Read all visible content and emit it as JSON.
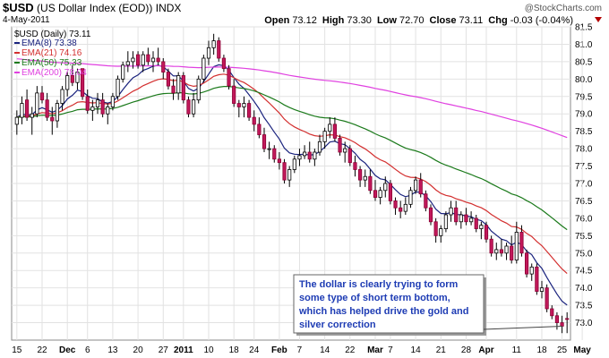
{
  "header": {
    "symbol": "$USD",
    "name": "(US Dollar Index (EOD))",
    "exchange": "INDX",
    "date": "4-May-2011",
    "brand": "@StockCharts.com",
    "open_label": "Open",
    "open": "73.12",
    "high_label": "High",
    "high": "73.30",
    "low_label": "Low",
    "low": "72.70",
    "close_label": "Close",
    "close": "73.11",
    "chg_label": "Chg",
    "chg": "-0.03 (-0.04%)"
  },
  "legend": {
    "main": "$USD (Daily) 73.11",
    "items": [
      {
        "label": "EMA(8) 73.38",
        "color": "#1a237e"
      },
      {
        "label": "EMA(21) 74.16",
        "color": "#d32f2f"
      },
      {
        "label": "EMA(50) 75.33",
        "color": "#1b7a1b"
      },
      {
        "label": "EMA(200) 78.04",
        "color": "#e040e0"
      }
    ]
  },
  "annotation": {
    "lines": [
      "The dollar is clearly trying to form",
      "some type of short term bottom,",
      "which has helped drive the gold and",
      "silver correction"
    ]
  },
  "chart_data": {
    "type": "candlestick",
    "title": "$USD (US Dollar Index (EOD)) INDX",
    "ylim": [
      72.5,
      81.5
    ],
    "yticks": [
      73.0,
      73.5,
      74.0,
      74.5,
      75.0,
      75.5,
      76.0,
      76.5,
      77.0,
      77.5,
      78.0,
      78.5,
      79.0,
      79.5,
      80.0,
      80.5,
      81.0,
      81.5
    ],
    "ytick_labels": [
      "73.0",
      "73.5",
      "74.0",
      "74.5",
      "75.0",
      "75.5",
      "76.0",
      "76.5",
      "77.0",
      "77.5",
      "78.0",
      "78.5",
      "79.0",
      "79.5",
      "80.0",
      "80.5",
      "81.0",
      "81.5"
    ],
    "xticks": [
      {
        "label": "15",
        "index": 0,
        "bold": false
      },
      {
        "label": "22",
        "index": 5,
        "bold": false
      },
      {
        "label": "Dec",
        "index": 10,
        "bold": true
      },
      {
        "label": "6",
        "index": 14,
        "bold": false
      },
      {
        "label": "13",
        "index": 19,
        "bold": false
      },
      {
        "label": "20",
        "index": 24,
        "bold": false
      },
      {
        "label": "27",
        "index": 29,
        "bold": false
      },
      {
        "label": "2011",
        "index": 33,
        "bold": true
      },
      {
        "label": "10",
        "index": 38,
        "bold": false
      },
      {
        "label": "18",
        "index": 43,
        "bold": false
      },
      {
        "label": "24",
        "index": 47,
        "bold": false
      },
      {
        "label": "Feb",
        "index": 52,
        "bold": true
      },
      {
        "label": "7",
        "index": 56,
        "bold": false
      },
      {
        "label": "14",
        "index": 61,
        "bold": false
      },
      {
        "label": "22",
        "index": 66,
        "bold": false
      },
      {
        "label": "Mar",
        "index": 71,
        "bold": true
      },
      {
        "label": "7",
        "index": 74,
        "bold": false
      },
      {
        "label": "14",
        "index": 79,
        "bold": false
      },
      {
        "label": "21",
        "index": 84,
        "bold": false
      },
      {
        "label": "28",
        "index": 89,
        "bold": false
      },
      {
        "label": "Apr",
        "index": 93,
        "bold": true
      },
      {
        "label": "11",
        "index": 99,
        "bold": false
      },
      {
        "label": "18",
        "index": 104,
        "bold": false
      },
      {
        "label": "25",
        "index": 108,
        "bold": false
      },
      {
        "label": "May",
        "index": 112,
        "bold": true
      }
    ],
    "candles": [
      [
        78.7,
        79.1,
        78.4,
        78.9
      ],
      [
        78.9,
        79.5,
        78.7,
        79.3
      ],
      [
        79.4,
        79.7,
        78.8,
        78.9
      ],
      [
        78.9,
        79.2,
        78.4,
        79.0
      ],
      [
        79.0,
        79.8,
        78.9,
        79.6
      ],
      [
        79.6,
        79.8,
        79.3,
        79.4
      ],
      [
        79.4,
        79.6,
        78.8,
        78.9
      ],
      [
        78.9,
        79.2,
        78.4,
        78.8
      ],
      [
        78.8,
        79.4,
        78.6,
        79.3
      ],
      [
        79.3,
        79.8,
        79.1,
        79.7
      ],
      [
        79.7,
        80.2,
        79.5,
        80.1
      ],
      [
        80.1,
        80.4,
        79.8,
        79.9
      ],
      [
        79.9,
        80.3,
        79.7,
        80.2
      ],
      [
        80.3,
        80.3,
        79.4,
        79.5
      ],
      [
        79.5,
        79.7,
        79.0,
        79.1
      ],
      [
        79.1,
        79.4,
        78.8,
        79.2
      ],
      [
        79.2,
        79.6,
        79.0,
        79.4
      ],
      [
        79.4,
        79.6,
        78.9,
        79.0
      ],
      [
        79.0,
        79.3,
        78.7,
        79.2
      ],
      [
        79.2,
        79.6,
        79.1,
        79.5
      ],
      [
        79.5,
        80.1,
        79.4,
        80.0
      ],
      [
        80.0,
        80.5,
        79.9,
        80.4
      ],
      [
        80.4,
        80.8,
        80.2,
        80.5
      ],
      [
        80.5,
        80.8,
        80.3,
        80.6
      ],
      [
        80.7,
        80.8,
        80.3,
        80.4
      ],
      [
        80.4,
        80.8,
        80.2,
        80.7
      ],
      [
        80.7,
        80.9,
        80.4,
        80.5
      ],
      [
        80.5,
        80.8,
        80.2,
        80.6
      ],
      [
        80.6,
        80.9,
        80.4,
        80.5
      ],
      [
        80.5,
        80.6,
        80.0,
        80.2
      ],
      [
        80.2,
        80.3,
        79.7,
        79.8
      ],
      [
        79.8,
        80.0,
        79.4,
        79.6
      ],
      [
        79.6,
        80.2,
        79.4,
        80.1
      ],
      [
        80.1,
        80.2,
        79.3,
        79.4
      ],
      [
        79.4,
        79.5,
        78.9,
        79.0
      ],
      [
        79.0,
        79.6,
        78.9,
        79.4
      ],
      [
        79.4,
        80.1,
        79.3,
        80.0
      ],
      [
        80.0,
        80.7,
        79.9,
        80.6
      ],
      [
        80.6,
        81.1,
        80.4,
        80.9
      ],
      [
        80.9,
        81.3,
        80.7,
        81.1
      ],
      [
        81.1,
        81.2,
        80.5,
        80.6
      ],
      [
        80.6,
        80.7,
        80.2,
        80.3
      ],
      [
        80.3,
        80.4,
        79.7,
        79.8
      ],
      [
        79.8,
        80.0,
        79.2,
        79.3
      ],
      [
        79.3,
        79.4,
        78.9,
        79.2
      ],
      [
        79.2,
        79.5,
        78.9,
        79.3
      ],
      [
        79.3,
        79.4,
        78.8,
        78.9
      ],
      [
        78.9,
        79.1,
        78.5,
        78.7
      ],
      [
        78.7,
        78.9,
        78.3,
        78.4
      ],
      [
        78.4,
        78.6,
        77.9,
        78.0
      ],
      [
        78.0,
        78.2,
        77.7,
        78.0
      ],
      [
        78.0,
        78.1,
        77.6,
        77.7
      ],
      [
        77.7,
        77.9,
        77.4,
        77.6
      ],
      [
        77.6,
        77.7,
        77.0,
        77.1
      ],
      [
        77.1,
        77.5,
        76.9,
        77.4
      ],
      [
        77.4,
        77.8,
        77.3,
        77.7
      ],
      [
        77.7,
        78.0,
        77.5,
        77.8
      ],
      [
        77.8,
        78.1,
        77.7,
        77.9
      ],
      [
        77.9,
        78.2,
        77.6,
        77.7
      ],
      [
        77.7,
        78.0,
        77.5,
        77.9
      ],
      [
        77.9,
        78.4,
        77.8,
        78.2
      ],
      [
        78.2,
        78.6,
        78.0,
        78.5
      ],
      [
        78.5,
        78.9,
        78.3,
        78.7
      ],
      [
        78.7,
        78.9,
        78.2,
        78.3
      ],
      [
        78.3,
        78.4,
        77.8,
        77.9
      ],
      [
        77.9,
        78.2,
        77.6,
        78.0
      ],
      [
        78.0,
        78.1,
        77.5,
        77.6
      ],
      [
        77.6,
        77.8,
        77.2,
        77.4
      ],
      [
        77.4,
        77.5,
        76.9,
        77.1
      ],
      [
        77.1,
        77.4,
        76.9,
        77.2
      ],
      [
        77.2,
        77.4,
        76.7,
        76.8
      ],
      [
        76.8,
        77.1,
        76.5,
        76.6
      ],
      [
        76.6,
        76.9,
        76.4,
        76.8
      ],
      [
        76.8,
        77.2,
        76.6,
        77.0
      ],
      [
        77.0,
        77.1,
        76.4,
        76.5
      ],
      [
        76.5,
        76.6,
        76.1,
        76.3
      ],
      [
        76.3,
        76.5,
        76.0,
        76.2
      ],
      [
        76.2,
        76.6,
        76.1,
        76.4
      ],
      [
        76.4,
        76.9,
        76.3,
        76.8
      ],
      [
        76.8,
        77.2,
        76.7,
        77.1
      ],
      [
        77.1,
        77.3,
        76.6,
        76.7
      ],
      [
        76.7,
        76.8,
        76.2,
        76.3
      ],
      [
        76.3,
        76.4,
        75.8,
        75.9
      ],
      [
        75.9,
        76.0,
        75.3,
        75.5
      ],
      [
        75.5,
        75.8,
        75.3,
        75.7
      ],
      [
        75.7,
        76.2,
        75.6,
        76.1
      ],
      [
        76.1,
        76.5,
        75.9,
        76.3
      ],
      [
        76.3,
        76.5,
        75.8,
        75.9
      ],
      [
        75.9,
        76.2,
        75.7,
        76.1
      ],
      [
        76.1,
        76.3,
        75.8,
        75.9
      ],
      [
        75.9,
        76.2,
        75.8,
        76.0
      ],
      [
        76.0,
        76.1,
        75.6,
        75.7
      ],
      [
        75.7,
        75.9,
        75.4,
        75.8
      ],
      [
        75.8,
        75.9,
        75.3,
        75.4
      ],
      [
        75.4,
        75.5,
        74.9,
        75.0
      ],
      [
        75.0,
        75.3,
        74.8,
        75.1
      ],
      [
        75.1,
        75.4,
        74.9,
        75.0
      ],
      [
        75.0,
        75.3,
        74.8,
        75.2
      ],
      [
        75.2,
        75.5,
        74.7,
        74.8
      ],
      [
        74.8,
        75.9,
        74.7,
        75.6
      ],
      [
        75.6,
        75.8,
        74.9,
        75.0
      ],
      [
        75.0,
        75.1,
        74.3,
        74.4
      ],
      [
        74.4,
        74.7,
        74.2,
        74.6
      ],
      [
        74.6,
        74.7,
        73.8,
        73.9
      ],
      [
        73.9,
        74.2,
        73.7,
        74.0
      ],
      [
        74.0,
        74.1,
        73.3,
        73.4
      ],
      [
        73.4,
        73.5,
        73.1,
        73.2
      ],
      [
        73.2,
        73.3,
        72.8,
        73.0
      ],
      [
        73.0,
        73.2,
        72.7,
        72.9
      ],
      [
        73.12,
        73.3,
        72.7,
        73.11
      ]
    ],
    "ema": [
      {
        "name": "EMA(8)",
        "period": 8,
        "color": "#1a237e"
      },
      {
        "name": "EMA(21)",
        "period": 21,
        "color": "#d32f2f"
      },
      {
        "name": "EMA(50)",
        "period": 50,
        "color": "#1b7a1b",
        "seed": 78.9
      },
      {
        "name": "EMA(200)",
        "period": 200,
        "color": "#e040e0",
        "seed": 80.6
      }
    ],
    "grid": true
  }
}
